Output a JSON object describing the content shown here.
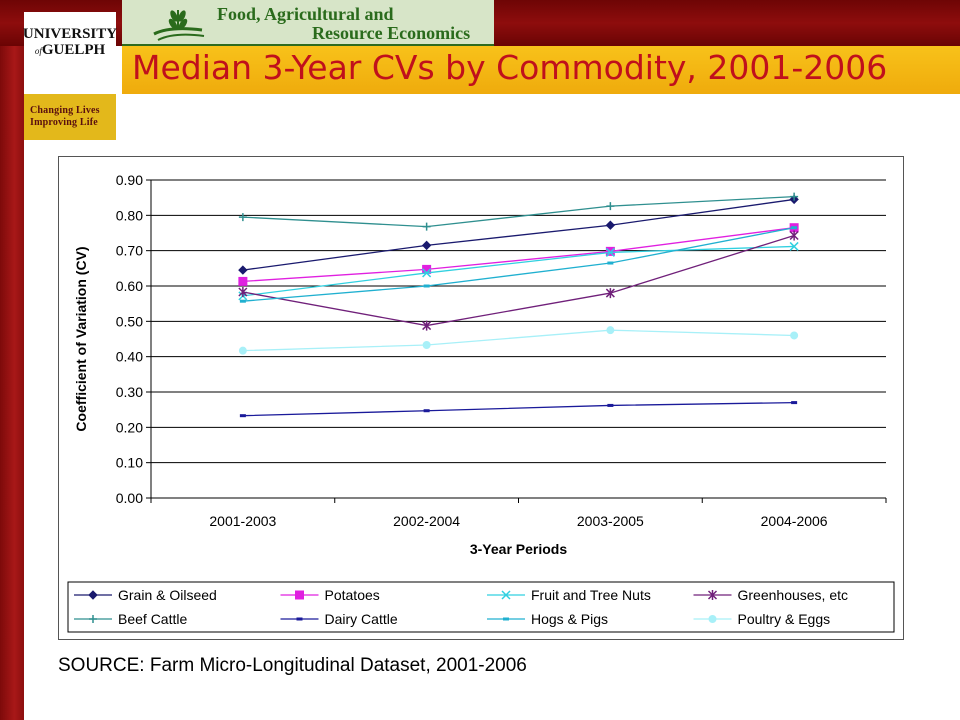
{
  "header": {
    "university_line1": "UNIVERSITY",
    "university_line2": "GUELPH",
    "university_of": "of",
    "tagline_line1": "Changing Lives",
    "tagline_line2": "Improving Life",
    "dept_line1": "Food, Agricultural and",
    "dept_line2": "Resource Economics",
    "title": "Median 3-Year CVs by Commodity, 2001-2006"
  },
  "colors": {
    "title": "#c0101c",
    "banner": "#8e0d0d",
    "title_bar": "#f5b814",
    "dept_green": "#2a6b1c"
  },
  "chart_data": {
    "type": "line",
    "categories": [
      "2001-2003",
      "2002-2004",
      "2003-2005",
      "2004-2006"
    ],
    "xlabel": "3-Year Periods",
    "ylabel": "Coefficient of Variation (CV)",
    "ylim": [
      0,
      0.9
    ],
    "ytick_step": 0.1,
    "yticks": [
      "0.00",
      "0.10",
      "0.20",
      "0.30",
      "0.40",
      "0.50",
      "0.60",
      "0.70",
      "0.80",
      "0.90"
    ],
    "grid": true,
    "legend_position": "bottom",
    "series": [
      {
        "name": "Grain & Oilseed",
        "values": [
          0.645,
          0.715,
          0.772,
          0.845
        ],
        "color": "#1a1a6e",
        "marker": "diamond"
      },
      {
        "name": "Potatoes",
        "values": [
          0.613,
          0.647,
          0.698,
          0.765
        ],
        "color": "#e020e0",
        "marker": "square"
      },
      {
        "name": "Fruit and Tree Nuts",
        "values": [
          0.572,
          0.637,
          0.695,
          0.712
        ],
        "color": "#30d0e0",
        "marker": "x"
      },
      {
        "name": "Greenhouses, etc",
        "values": [
          0.583,
          0.488,
          0.58,
          0.743
        ],
        "color": "#70207a",
        "marker": "star"
      },
      {
        "name": "Beef Cattle",
        "values": [
          0.795,
          0.768,
          0.826,
          0.853
        ],
        "color": "#2f8f8f",
        "marker": "plus"
      },
      {
        "name": "Dairy Cattle",
        "values": [
          0.233,
          0.247,
          0.262,
          0.27
        ],
        "color": "#1a1a9a",
        "marker": "dash"
      },
      {
        "name": "Hogs & Pigs",
        "values": [
          0.557,
          0.6,
          0.665,
          0.765
        ],
        "color": "#20b0d0",
        "marker": "dash"
      },
      {
        "name": "Poultry & Eggs",
        "values": [
          0.417,
          0.433,
          0.475,
          0.46
        ],
        "color": "#a8f0f8",
        "marker": "circle"
      }
    ]
  },
  "source": "SOURCE: Farm Micro-Longitudinal Dataset, 2001-2006"
}
